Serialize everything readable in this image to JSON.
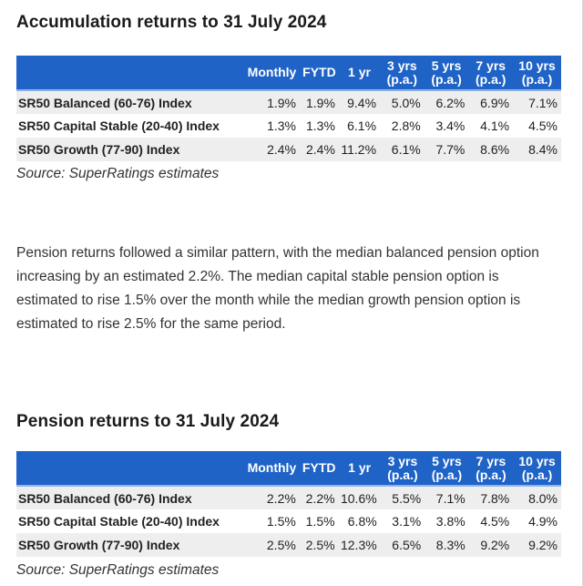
{
  "accumulation": {
    "title": "Accumulation returns to 31 July 2024",
    "headers": [
      "Monthly",
      "FYTD",
      "1 yr",
      "3 yrs (p.a.)",
      "5 yrs (p.a.)",
      "7 yrs (p.a.)",
      "10 yrs (p.a.)"
    ],
    "rows": [
      {
        "label": "SR50 Balanced (60-76) Index",
        "values": [
          "1.9%",
          "1.9%",
          "9.4%",
          "5.0%",
          "6.2%",
          "6.9%",
          "7.1%"
        ]
      },
      {
        "label": "SR50 Capital Stable (20-40) Index",
        "values": [
          "1.3%",
          "1.3%",
          "6.1%",
          "2.8%",
          "3.4%",
          "4.1%",
          "4.5%"
        ]
      },
      {
        "label": "SR50 Growth (77-90) Index",
        "values": [
          "2.4%",
          "2.4%",
          "11.2%",
          "6.1%",
          "7.7%",
          "8.6%",
          "8.4%"
        ]
      }
    ],
    "source": "Source: SuperRatings estimates"
  },
  "paragraph": "Pension returns followed a similar pattern, with the median balanced pension option increasing by an estimated 2.2%. The median capital stable pension option is estimated to rise 1.5% over the month while the median growth pension option is estimated to rise 2.5% for the same period.",
  "pension": {
    "title": "Pension returns to 31 July 2024",
    "headers": [
      "Monthly",
      "FYTD",
      "1 yr",
      "3 yrs (p.a.)",
      "5 yrs (p.a.)",
      "7 yrs (p.a.)",
      "10 yrs (p.a.)"
    ],
    "rows": [
      {
        "label": "SR50 Balanced (60-76) Index",
        "values": [
          "2.2%",
          "2.2%",
          "10.6%",
          "5.5%",
          "7.1%",
          "7.8%",
          "8.0%"
        ]
      },
      {
        "label": "SR50 Capital Stable (20-40) Index",
        "values": [
          "1.5%",
          "1.5%",
          "6.8%",
          "3.1%",
          "3.8%",
          "4.5%",
          "4.9%"
        ]
      },
      {
        "label": "SR50 Growth (77-90) Index",
        "values": [
          "2.5%",
          "2.5%",
          "12.3%",
          "6.5%",
          "8.3%",
          "9.2%",
          "9.2%"
        ]
      }
    ],
    "source": "Source: SuperRatings estimates"
  },
  "colors": {
    "header_bg": "#1f63c7",
    "header_text": "#ffffff",
    "row_stripe": "#eeeeee"
  }
}
